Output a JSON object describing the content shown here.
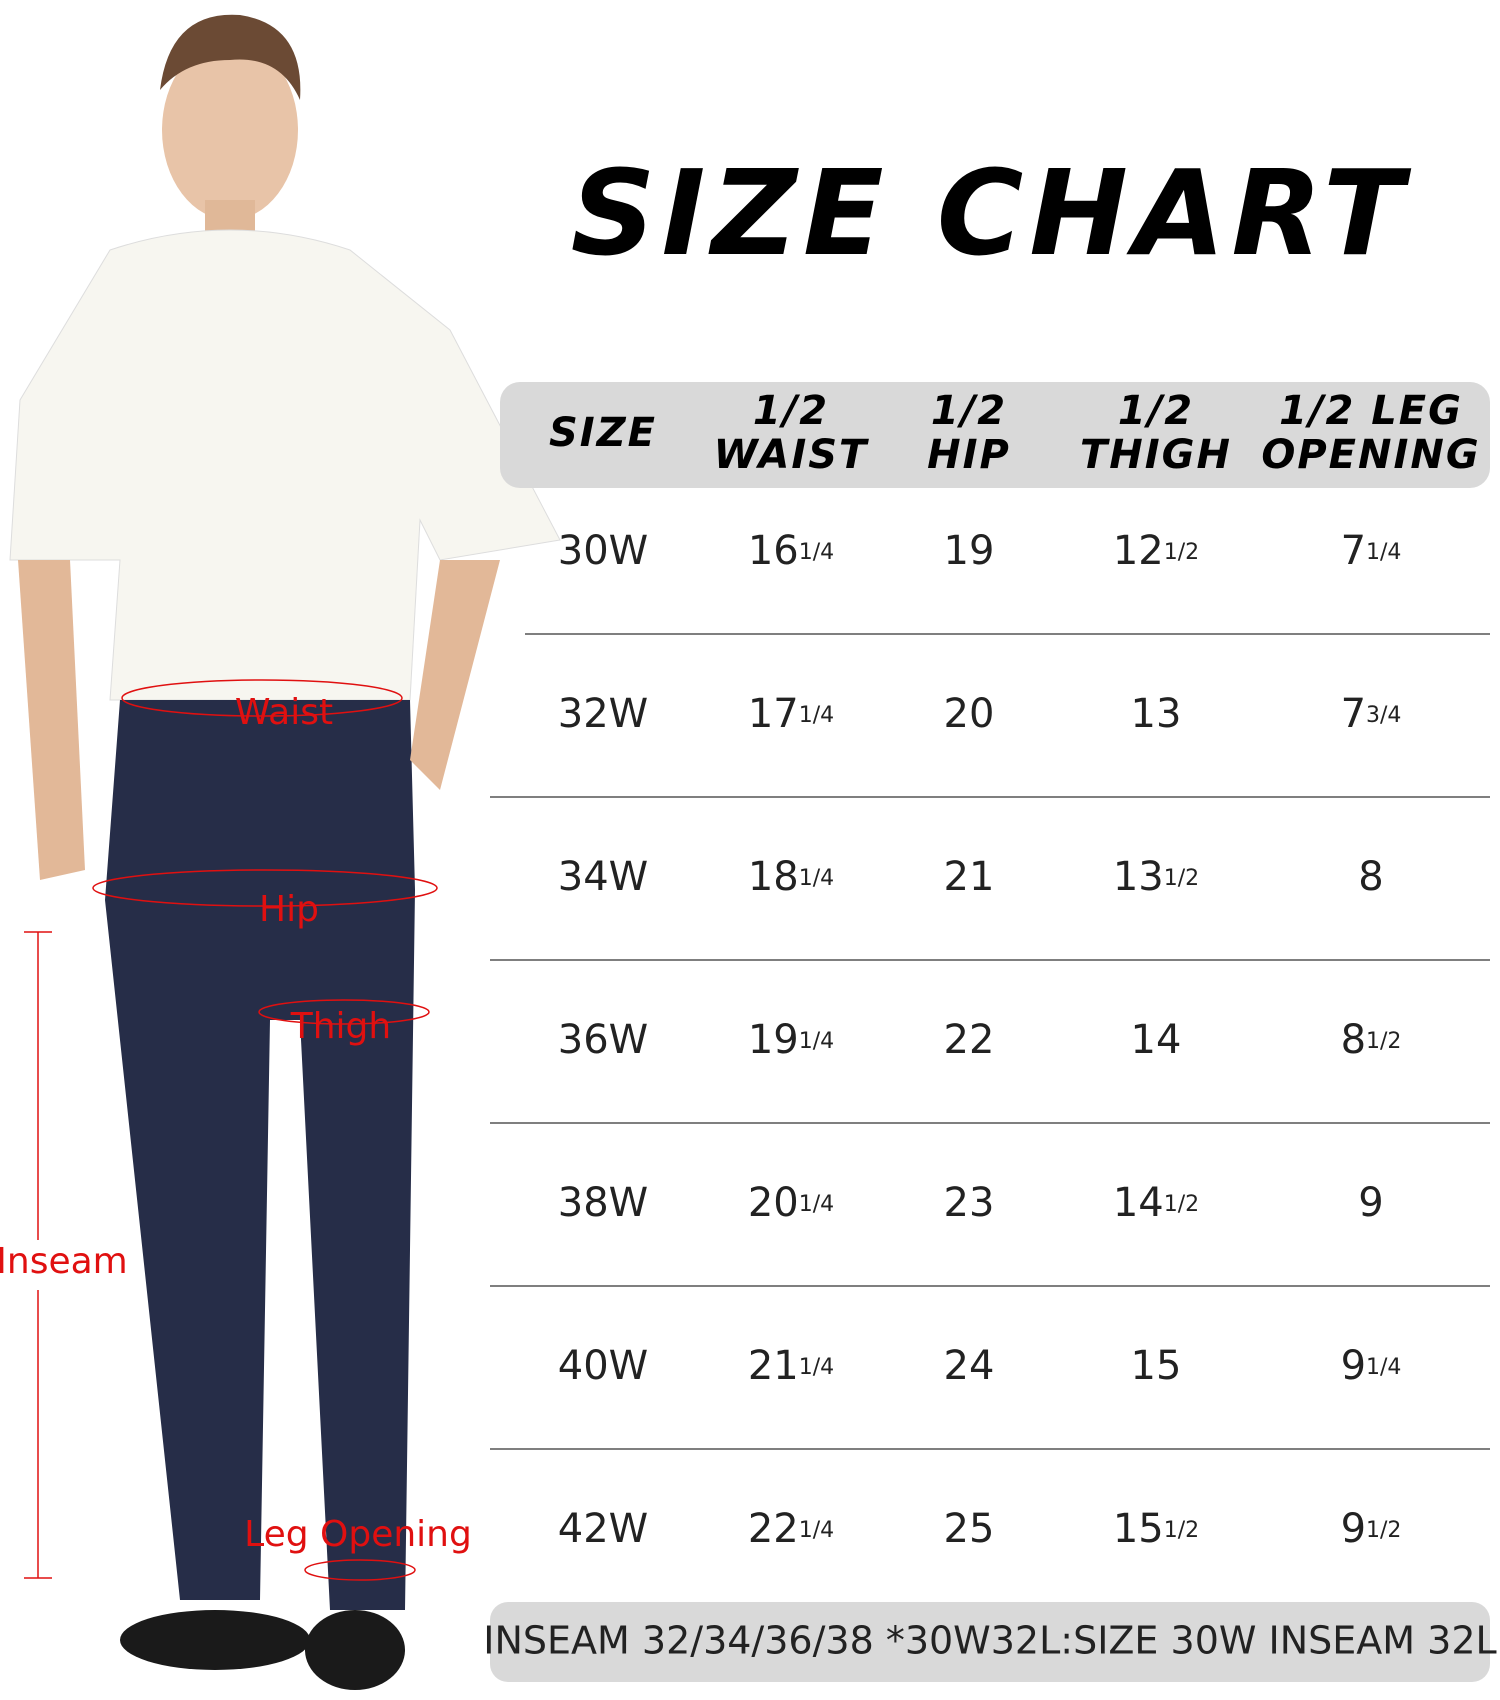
{
  "header": {
    "title": "SIZE CHART"
  },
  "table": {
    "columns": [
      [
        "SIZE"
      ],
      [
        "1/2",
        "WAIST"
      ],
      [
        "1/2",
        "HIP"
      ],
      [
        "1/2",
        "THIGH"
      ],
      [
        "1/2 LEG",
        "OPENING"
      ]
    ],
    "rows": [
      [
        [
          "30W"
        ],
        [
          "16",
          "1/4"
        ],
        [
          "19"
        ],
        [
          "12",
          "1/2"
        ],
        [
          "7",
          "1/4"
        ]
      ],
      [
        [
          "32W"
        ],
        [
          "17",
          "1/4"
        ],
        [
          "20"
        ],
        [
          "13"
        ],
        [
          "7",
          "3/4"
        ]
      ],
      [
        [
          "34W"
        ],
        [
          "18",
          "1/4"
        ],
        [
          "21"
        ],
        [
          "13",
          "1/2"
        ],
        [
          "8"
        ]
      ],
      [
        [
          "36W"
        ],
        [
          "19",
          "1/4"
        ],
        [
          "22"
        ],
        [
          "14"
        ],
        [
          "8",
          "1/2"
        ]
      ],
      [
        [
          "38W"
        ],
        [
          "20",
          "1/4"
        ],
        [
          "23"
        ],
        [
          "14",
          "1/2"
        ],
        [
          "9"
        ]
      ],
      [
        [
          "40W"
        ],
        [
          "21",
          "1/4"
        ],
        [
          "24"
        ],
        [
          "15"
        ],
        [
          "9",
          "1/4"
        ]
      ],
      [
        [
          "42W"
        ],
        [
          "22",
          "1/4"
        ],
        [
          "25"
        ],
        [
          "15",
          "1/2"
        ],
        [
          "9",
          "1/2"
        ]
      ]
    ],
    "note": "INSEAM 32/34/36/38 *30W32L:SIZE 30W INSEAM 32L"
  },
  "figure": {
    "labels": [
      "Waist",
      "Hip",
      "Thigh",
      "Inseam",
      "Leg Opening"
    ]
  }
}
